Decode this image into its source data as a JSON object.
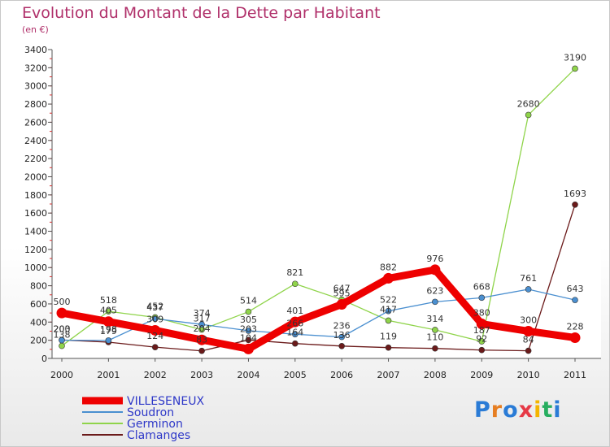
{
  "title": "Evolution du Montant de la Dette par Habitant",
  "unit": "(en €)",
  "logo": {
    "letters": [
      "P",
      "r",
      "o",
      "x",
      "i",
      "t",
      "i"
    ],
    "colors": [
      "#2a7bd6",
      "#e67e22",
      "#2a7bd6",
      "#e63946",
      "#f4b400",
      "#27ae60",
      "#2a7bd6"
    ]
  },
  "chart_data": {
    "type": "line",
    "x": [
      2000,
      2001,
      2002,
      2003,
      2004,
      2005,
      2006,
      2007,
      2008,
      2009,
      2010,
      2011
    ],
    "ylim": [
      0,
      3400
    ],
    "yticks": [
      0,
      200,
      400,
      600,
      800,
      1000,
      1200,
      1400,
      1600,
      1800,
      2000,
      2200,
      2400,
      2600,
      2800,
      3000,
      3200,
      3400
    ],
    "grid": false,
    "legend_position": "bottom-left",
    "series": [
      {
        "name": "VILLESENEUX",
        "color": "#ee0000",
        "values": [
          500,
          405,
          309,
          204,
          104,
          401,
          595,
          882,
          976,
          380,
          300,
          228
        ]
      },
      {
        "name": "Soudron",
        "color": "#4a8fd0",
        "values": [
          200,
          198,
          437,
          374,
          305,
          266,
          236,
          522,
          623,
          668,
          761,
          643
        ]
      },
      {
        "name": "Germinon",
        "color": "#8fd44a",
        "values": [
          138,
          518,
          452,
          317,
          514,
          821,
          647,
          417,
          314,
          187,
          2680,
          3190
        ]
      },
      {
        "name": "Clamanges",
        "color": "#6b1a1a",
        "values": [
          203,
          179,
          124,
          83,
          203,
          164,
          136,
          119,
          110,
          92,
          84,
          1693
        ]
      }
    ]
  }
}
